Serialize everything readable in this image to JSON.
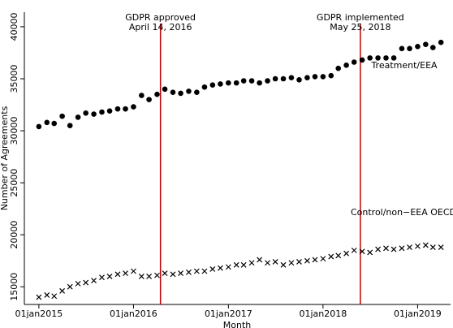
{
  "chart_data": {
    "type": "scatter",
    "x_label": "Month",
    "y_label": "Number of Agreements",
    "x": [
      "2015-01",
      "2015-02",
      "2015-03",
      "2015-04",
      "2015-05",
      "2015-06",
      "2015-07",
      "2015-08",
      "2015-09",
      "2015-10",
      "2015-11",
      "2015-12",
      "2016-01",
      "2016-02",
      "2016-03",
      "2016-04",
      "2016-05",
      "2016-06",
      "2016-07",
      "2016-08",
      "2016-09",
      "2016-10",
      "2016-11",
      "2016-12",
      "2017-01",
      "2017-02",
      "2017-03",
      "2017-04",
      "2017-05",
      "2017-06",
      "2017-07",
      "2017-08",
      "2017-09",
      "2017-10",
      "2017-11",
      "2017-12",
      "2018-01",
      "2018-02",
      "2018-03",
      "2018-04",
      "2018-05",
      "2018-06",
      "2018-07",
      "2018-08",
      "2018-09",
      "2018-10",
      "2018-11",
      "2018-12",
      "2019-01",
      "2019-02",
      "2019-03",
      "2019-04"
    ],
    "series": [
      {
        "name": "Treatment/EEA",
        "marker": "circle",
        "color": "#000000",
        "values": [
          30400,
          30800,
          30700,
          31400,
          30500,
          31300,
          31700,
          31600,
          31800,
          31900,
          32100,
          32100,
          32300,
          33400,
          33000,
          33500,
          34000,
          33700,
          33600,
          33800,
          33700,
          34200,
          34400,
          34500,
          34600,
          34600,
          34800,
          34800,
          34600,
          34800,
          35000,
          35000,
          35100,
          34900,
          35100,
          35200,
          35200,
          35300,
          36000,
          36300,
          36600,
          36800,
          37000,
          37000,
          37000,
          37000,
          37900,
          37900,
          38100,
          38300,
          38000,
          38500
        ]
      },
      {
        "name": "Control/non−EEA OECD",
        "marker": "x",
        "color": "#000000",
        "values": [
          14000,
          14200,
          14100,
          14600,
          15000,
          15300,
          15400,
          15600,
          15900,
          16000,
          16200,
          16300,
          16500,
          16000,
          16000,
          16100,
          16300,
          16200,
          16300,
          16400,
          16500,
          16500,
          16700,
          16800,
          16900,
          17100,
          17100,
          17300,
          17600,
          17300,
          17400,
          17100,
          17300,
          17400,
          17500,
          17600,
          17700,
          17900,
          18000,
          18200,
          18500,
          18400,
          18300,
          18600,
          18700,
          18600,
          18700,
          18800,
          18900,
          19000,
          18800,
          18800
        ]
      }
    ],
    "events": [
      {
        "date": "2016-04-14",
        "color": "#c00000",
        "label": [
          "GDPR approved",
          "April 14, 2016"
        ]
      },
      {
        "date": "2018-05-25",
        "color": "#c00000",
        "label": [
          "GDPR implemented",
          "May 25, 2018"
        ]
      }
    ],
    "xlim": [
      "2014-11-06",
      "2019-05-08"
    ],
    "xticks": [
      {
        "value": "2015-01-01",
        "label": "01jan2015"
      },
      {
        "value": "2016-01-01",
        "label": "01jan2016"
      },
      {
        "value": "2017-01-01",
        "label": "01jan2017"
      },
      {
        "value": "2018-01-01",
        "label": "01jan2018"
      },
      {
        "value": "2019-01-01",
        "label": "01jan2019"
      }
    ],
    "ylim": [
      13300,
      41400
    ],
    "yticks": [
      15000,
      20000,
      25000,
      30000,
      35000,
      40000
    ]
  }
}
